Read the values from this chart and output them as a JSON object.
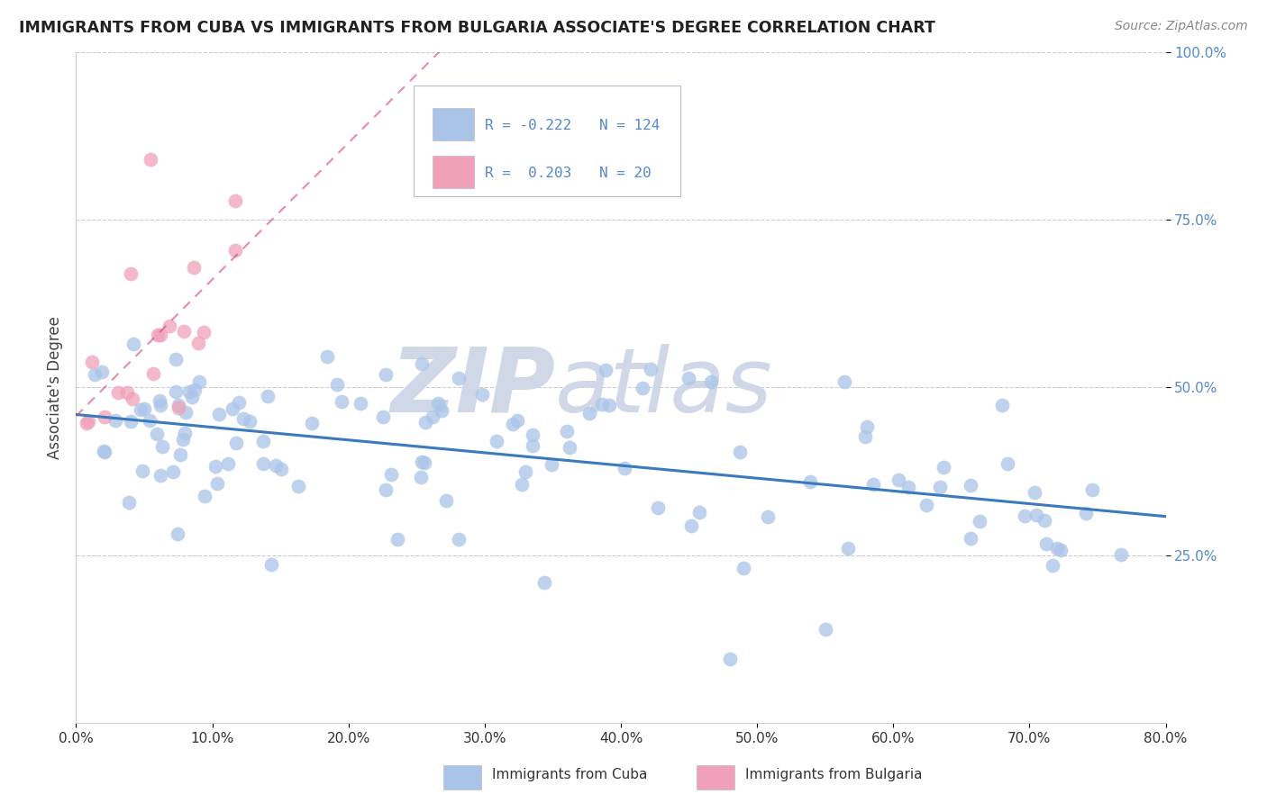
{
  "title": "IMMIGRANTS FROM CUBA VS IMMIGRANTS FROM BULGARIA ASSOCIATE'S DEGREE CORRELATION CHART",
  "source": "Source: ZipAtlas.com",
  "ylabel": "Associate's Degree",
  "xlim": [
    0.0,
    0.8
  ],
  "ylim": [
    0.0,
    1.0
  ],
  "xticks": [
    0.0,
    0.1,
    0.2,
    0.3,
    0.4,
    0.5,
    0.6,
    0.7,
    0.8
  ],
  "yticks": [
    0.25,
    0.5,
    0.75,
    1.0
  ],
  "ytick_labels": [
    "25.0%",
    "50.0%",
    "75.0%",
    "100.0%"
  ],
  "xtick_labels": [
    "0.0%",
    "10.0%",
    "20.0%",
    "30.0%",
    "40.0%",
    "50.0%",
    "60.0%",
    "70.0%",
    "80.0%"
  ],
  "legend_labels": [
    "Immigrants from Cuba",
    "Immigrants from Bulgaria"
  ],
  "legend_r": [
    -0.222,
    0.203
  ],
  "legend_n": [
    124,
    20
  ],
  "cuba_color": "#aac4e8",
  "bulgaria_color": "#f0a0b8",
  "cuba_line_color": "#3a7abf",
  "bulgaria_line_color": "#d44070",
  "watermark_zip": "ZIP",
  "watermark_atlas": "atlas",
  "watermark_color": "#d0d8e8",
  "background_color": "#ffffff",
  "grid_color": "#cccccc",
  "tick_color_y": "#5588cc",
  "tick_color_x": "#333333",
  "title_color": "#222222",
  "source_color": "#888888"
}
